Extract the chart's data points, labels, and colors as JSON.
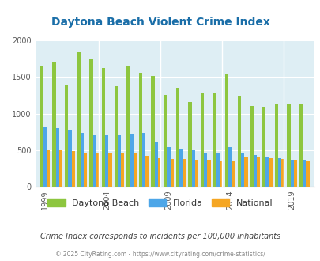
{
  "title": "Daytona Beach Violent Crime Index",
  "years": [
    1999,
    2000,
    2001,
    2002,
    2003,
    2004,
    2005,
    2006,
    2007,
    2008,
    2009,
    2010,
    2011,
    2012,
    2013,
    2014,
    2015,
    2016,
    2017,
    2018,
    2019,
    2020
  ],
  "daytona": [
    1640,
    1700,
    1390,
    1840,
    1750,
    1620,
    1370,
    1650,
    1560,
    1510,
    1260,
    1350,
    1155,
    1290,
    1280,
    1550,
    1240,
    1100,
    1095,
    1120,
    1135,
    1135
  ],
  "florida": [
    820,
    800,
    780,
    740,
    700,
    700,
    700,
    720,
    730,
    620,
    540,
    510,
    500,
    470,
    465,
    540,
    465,
    430,
    410,
    390,
    370,
    365
  ],
  "national": [
    500,
    500,
    490,
    470,
    460,
    460,
    470,
    460,
    420,
    390,
    375,
    375,
    370,
    365,
    360,
    355,
    395,
    395,
    390,
    380,
    370,
    360
  ],
  "color_daytona": "#8dc63f",
  "color_florida": "#4da6e8",
  "color_national": "#f5a623",
  "bg_color": "#deeef4",
  "ylim": [
    0,
    2000
  ],
  "yticks": [
    0,
    500,
    1000,
    1500,
    2000
  ],
  "xlabel_ticks": [
    1999,
    2004,
    2009,
    2014,
    2019
  ],
  "legend_labels": [
    "Daytona Beach",
    "Florida",
    "National"
  ],
  "footnote1": "Crime Index corresponds to incidents per 100,000 inhabitants",
  "footnote2": "© 2025 CityRating.com - https://www.cityrating.com/crime-statistics/"
}
